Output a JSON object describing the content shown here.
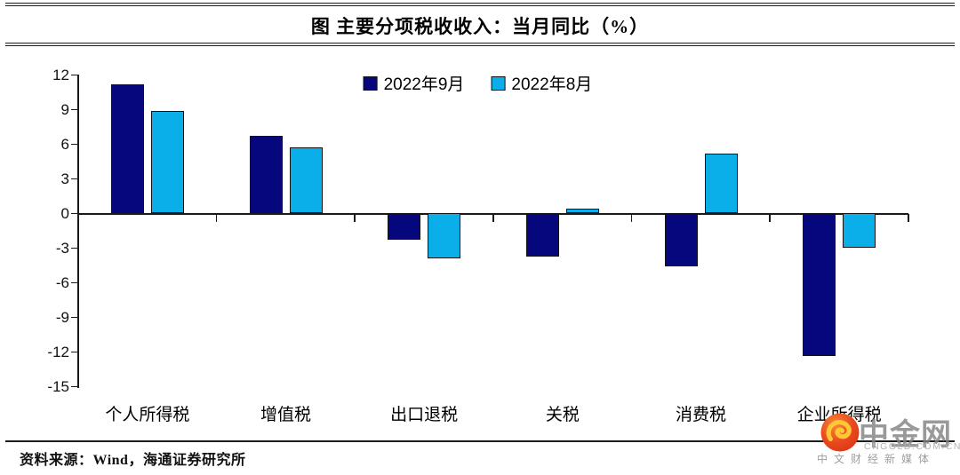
{
  "figure": {
    "title": "图 主要分项税收收入：当月同比（%）",
    "source": "资料来源：Wind，海通证券研究所"
  },
  "watermark": {
    "brand": "中金网",
    "domain": "CNGOLD.COM.CN",
    "tagline": "中 文 财 经 新 媒 体",
    "logo_icon": "golden-cloud-swirl",
    "colors": {
      "logo_red": "#E8431F",
      "logo_gold": "#FFC636",
      "text_gray": "#A9A9A9"
    }
  },
  "chart_data": {
    "type": "bar",
    "title": "图 主要分项税收收入：当月同比（%）",
    "categories": [
      "个人所得税",
      "增值税",
      "出口退税",
      "关税",
      "消费税",
      "企业所得税"
    ],
    "series": [
      {
        "name": "2022年9月",
        "color": "#06067D",
        "values": [
          11.2,
          6.7,
          -2.3,
          -3.8,
          -4.6,
          -12.4
        ]
      },
      {
        "name": "2022年8月",
        "color": "#0AAEE8",
        "values": [
          8.9,
          5.7,
          -3.9,
          0.4,
          5.2,
          -3.0
        ]
      }
    ],
    "xlabel": "",
    "ylabel": "",
    "ylim": [
      -15,
      12
    ],
    "yticks": [
      12,
      9,
      6,
      3,
      0,
      -3,
      -6,
      -9,
      -12,
      -15
    ],
    "grid": false,
    "legend_position": "top-center",
    "bar_edge_color": "#141414"
  }
}
